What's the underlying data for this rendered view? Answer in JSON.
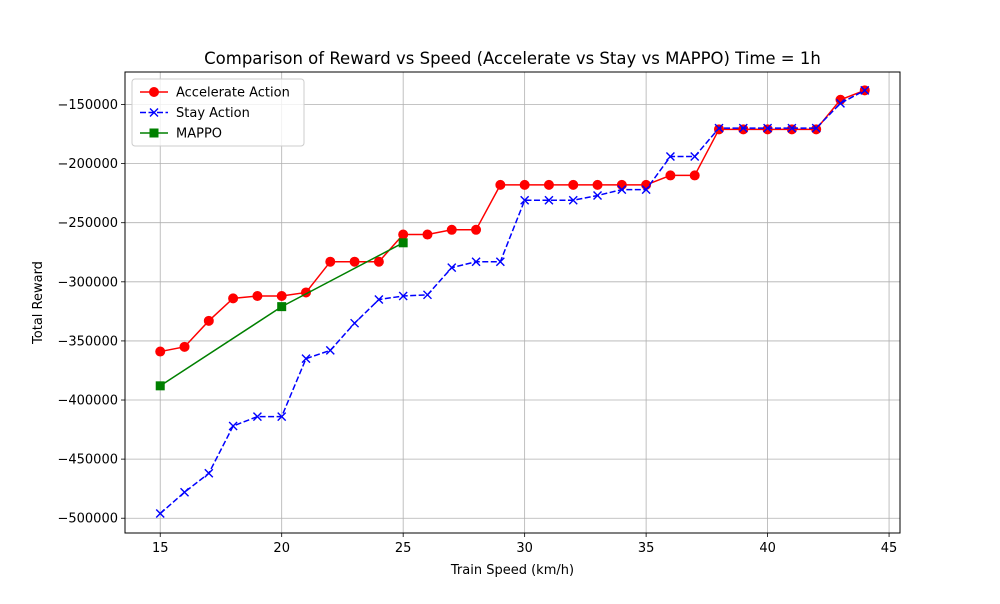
{
  "chart_data": {
    "type": "line",
    "title": "Comparison of Reward vs Speed (Accelerate vs Stay vs MAPPO) Time = 1h",
    "xlabel": "Train Speed (km/h)",
    "ylabel": "Total Reward",
    "xlim": [
      13.55,
      45.45
    ],
    "ylim": [
      -512500,
      -122500
    ],
    "xticks": [
      15,
      20,
      25,
      30,
      35,
      40,
      45
    ],
    "yticks": [
      -500000,
      -450000,
      -400000,
      -350000,
      -300000,
      -250000,
      -200000,
      -150000
    ],
    "xtick_labels": [
      "15",
      "20",
      "25",
      "30",
      "35",
      "40",
      "45"
    ],
    "ytick_labels": [
      "−500000",
      "−450000",
      "−400000",
      "−350000",
      "−300000",
      "−250000",
      "−200000",
      "−150000"
    ],
    "grid": true,
    "legend_position": "upper-left",
    "series": [
      {
        "name": "Accelerate Action",
        "color": "#ff0000",
        "line_style": "solid",
        "marker": "circle",
        "x": [
          15,
          16,
          17,
          18,
          19,
          20,
          21,
          22,
          23,
          24,
          25,
          26,
          27,
          28,
          29,
          30,
          31,
          32,
          33,
          34,
          35,
          36,
          37,
          38,
          39,
          40,
          41,
          42,
          43,
          44
        ],
        "values": [
          -359000,
          -355000,
          -333000,
          -314000,
          -312000,
          -312000,
          -309000,
          -283000,
          -283000,
          -283000,
          -260000,
          -260000,
          -256000,
          -256000,
          -218000,
          -218000,
          -218000,
          -218000,
          -218000,
          -218000,
          -218000,
          -210000,
          -210000,
          -171000,
          -171000,
          -171000,
          -171000,
          -171000,
          -146000,
          -138000
        ]
      },
      {
        "name": "Stay Action",
        "color": "#0000ff",
        "line_style": "dashed",
        "marker": "x",
        "x": [
          15,
          16,
          17,
          18,
          19,
          20,
          21,
          22,
          23,
          24,
          25,
          26,
          27,
          28,
          29,
          30,
          31,
          32,
          33,
          34,
          35,
          36,
          37,
          38,
          39,
          40,
          41,
          42,
          43,
          44
        ],
        "values": [
          -496000,
          -478000,
          -462000,
          -422000,
          -414000,
          -414000,
          -365000,
          -358000,
          -335000,
          -315000,
          -312000,
          -311000,
          -288000,
          -283000,
          -283000,
          -231000,
          -231000,
          -231000,
          -227000,
          -222000,
          -222000,
          -194000,
          -194000,
          -170000,
          -170000,
          -170000,
          -170000,
          -170000,
          -149000,
          -138000
        ]
      },
      {
        "name": "MAPPO",
        "color": "#008000",
        "line_style": "solid",
        "marker": "square",
        "x": [
          15,
          20,
          25
        ],
        "values": [
          -388000,
          -321000,
          -267000
        ]
      }
    ]
  }
}
